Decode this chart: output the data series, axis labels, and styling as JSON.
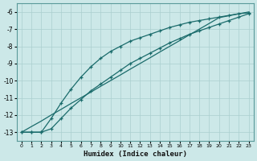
{
  "xlabel": "Humidex (Indice chaleur)",
  "ylabel": "",
  "xlim": [
    -0.5,
    23.5
  ],
  "ylim": [
    -13.5,
    -5.5
  ],
  "xticks": [
    0,
    1,
    2,
    3,
    4,
    5,
    6,
    7,
    8,
    9,
    10,
    11,
    12,
    13,
    14,
    15,
    16,
    17,
    18,
    19,
    20,
    21,
    22,
    23
  ],
  "yticks": [
    -13,
    -12,
    -11,
    -10,
    -9,
    -8,
    -7,
    -6
  ],
  "background_color": "#cce8e8",
  "grid_color": "#aacfcf",
  "line_color": "#1a6b6b",
  "x": [
    0,
    1,
    2,
    3,
    4,
    5,
    6,
    7,
    8,
    9,
    10,
    11,
    12,
    13,
    14,
    15,
    16,
    17,
    18,
    19,
    20,
    21,
    22,
    23
  ],
  "y_straight": [
    -13.0,
    -12.67,
    -12.35,
    -12.0,
    -11.67,
    -11.33,
    -11.0,
    -10.67,
    -10.33,
    -10.0,
    -9.67,
    -9.33,
    -9.0,
    -8.67,
    -8.33,
    -8.0,
    -7.67,
    -7.33,
    -7.0,
    -6.67,
    -6.33,
    -6.22,
    -6.11,
    -6.0
  ],
  "y_upper": [
    -13.0,
    -13.0,
    -13.0,
    -12.2,
    -11.3,
    -10.5,
    -9.8,
    -9.2,
    -8.7,
    -8.3,
    -8.0,
    -7.7,
    -7.5,
    -7.3,
    -7.1,
    -6.9,
    -6.75,
    -6.6,
    -6.5,
    -6.4,
    -6.3,
    -6.2,
    -6.1,
    -6.05
  ],
  "y_lower": [
    -13.0,
    -13.0,
    -13.0,
    -12.8,
    -12.2,
    -11.6,
    -11.1,
    -10.6,
    -10.2,
    -9.8,
    -9.4,
    -9.0,
    -8.7,
    -8.4,
    -8.1,
    -7.8,
    -7.55,
    -7.3,
    -7.1,
    -6.9,
    -6.7,
    -6.5,
    -6.3,
    -6.1
  ]
}
